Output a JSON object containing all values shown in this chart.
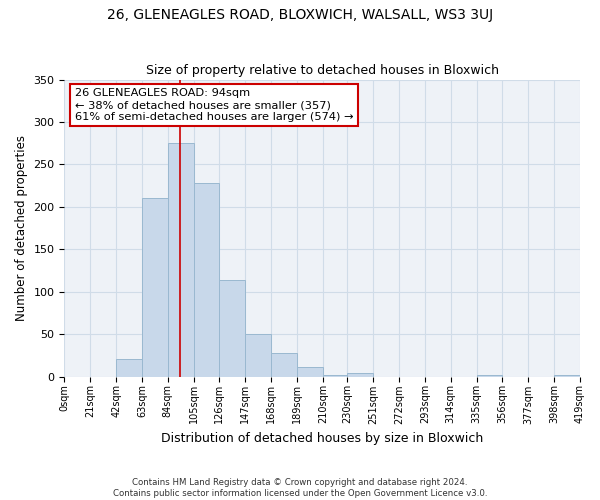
{
  "title": "26, GLENEAGLES ROAD, BLOXWICH, WALSALL, WS3 3UJ",
  "subtitle": "Size of property relative to detached houses in Bloxwich",
  "xlabel": "Distribution of detached houses by size in Bloxwich",
  "ylabel": "Number of detached properties",
  "bar_color": "#c8d8ea",
  "bar_edge_color": "#9ab8d0",
  "grid_color": "#d0dce8",
  "background_color": "#eef2f7",
  "vertical_line_x": 94,
  "vertical_line_color": "#cc0000",
  "bin_edges": [
    0,
    21,
    42,
    63,
    84,
    105,
    126,
    147,
    168,
    189,
    210,
    230,
    251,
    272,
    293,
    314,
    335,
    356,
    377,
    398,
    419
  ],
  "bin_heights": [
    0,
    0,
    21,
    210,
    275,
    228,
    114,
    50,
    28,
    11,
    2,
    4,
    0,
    0,
    0,
    0,
    2,
    0,
    0,
    2
  ],
  "ylim": [
    0,
    350
  ],
  "yticks": [
    0,
    50,
    100,
    150,
    200,
    250,
    300,
    350
  ],
  "annotation_text": "26 GLENEAGLES ROAD: 94sqm\n← 38% of detached houses are smaller (357)\n61% of semi-detached houses are larger (574) →",
  "annotation_box_color": "#ffffff",
  "annotation_box_edge": "#cc0000",
  "footer_line1": "Contains HM Land Registry data © Crown copyright and database right 2024.",
  "footer_line2": "Contains public sector information licensed under the Open Government Licence v3.0."
}
